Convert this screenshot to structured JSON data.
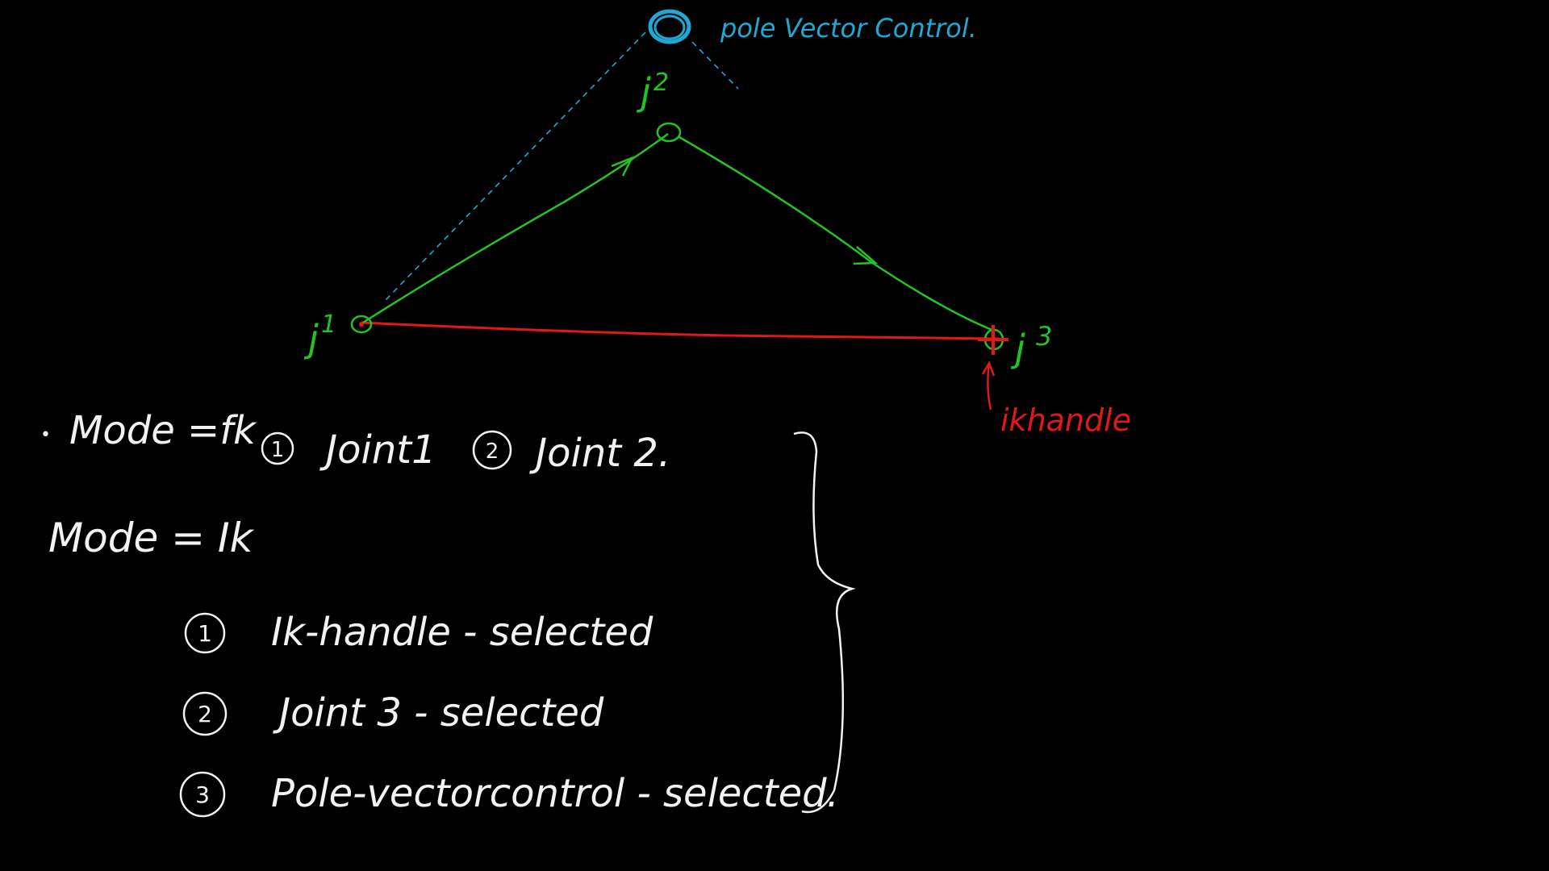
{
  "diagram": {
    "pole_vector_label": "pole Vector Control.",
    "joints": {
      "j1": {
        "letter": "j",
        "sup": "1"
      },
      "j2": {
        "letter": "j",
        "sup": "2"
      },
      "j3": {
        "letter": "j",
        "sup": "3"
      }
    },
    "ik_handle_label": "ikhandle"
  },
  "notes": {
    "fk": {
      "bullet": "•",
      "mode_label": "Mode =fk",
      "steps": [
        {
          "num": "1",
          "text": "Joint1"
        },
        {
          "num": "2",
          "text": "Joint 2."
        }
      ]
    },
    "ik": {
      "mode_label": "Mode = Ik",
      "steps": [
        {
          "num": "1",
          "text": "Ik-handle - selected"
        },
        {
          "num": "2",
          "text": "Joint 3  - selected"
        },
        {
          "num": "3",
          "text": "Pole-vectorcontrol - selected."
        }
      ]
    }
  },
  "colors": {
    "background": "#000000",
    "joint_chain": "#22c322",
    "pole_vector": "#1fa8d6",
    "ik_handle": "#e01818",
    "notes_text": "#f2f2f2"
  }
}
